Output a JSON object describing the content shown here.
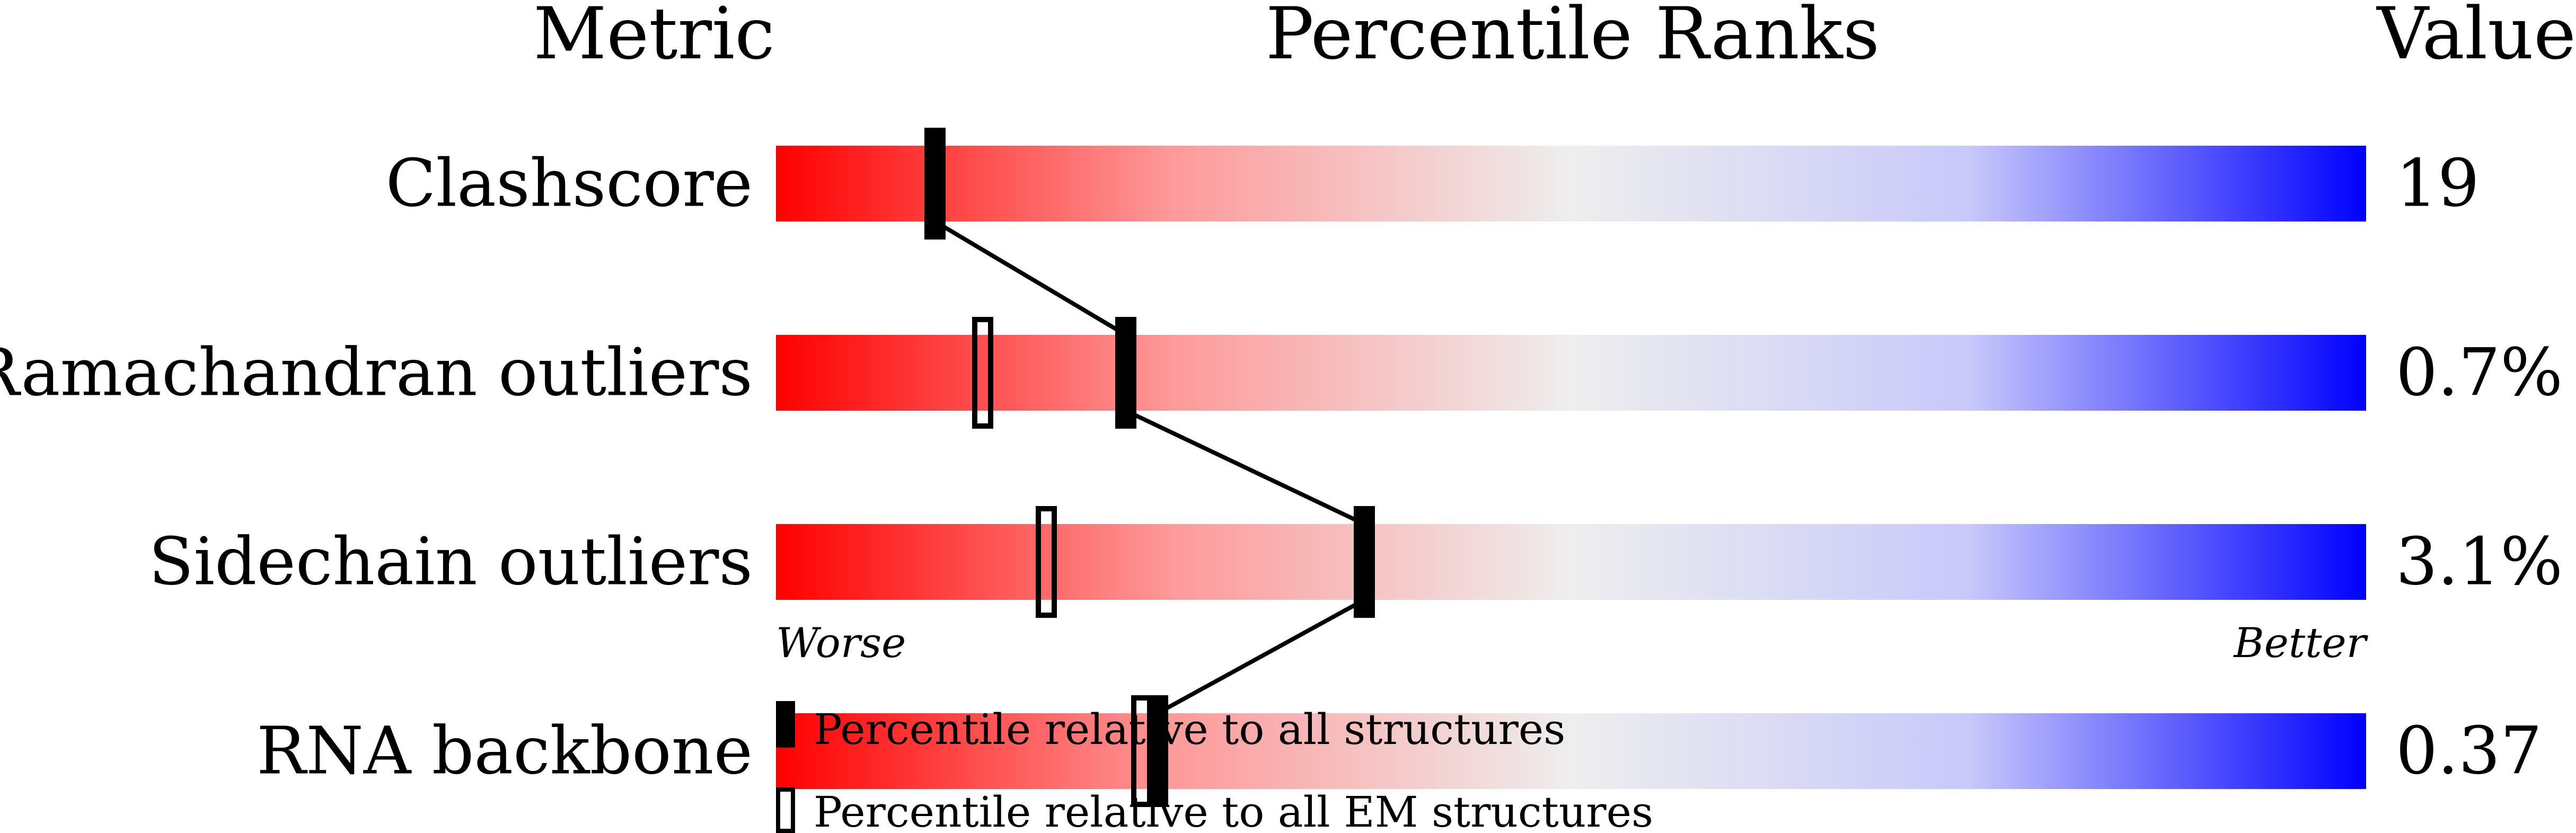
{
  "chart_data": {
    "type": "percentile-bar",
    "headers": {
      "metric": "Metric",
      "ranks": "Percentile Ranks",
      "value": "Value"
    },
    "xlim": [
      0,
      100
    ],
    "axis_labels": {
      "worse": "Worse",
      "better": "Better"
    },
    "gradient_colors": [
      "#ff0000",
      "#eeeeee",
      "#0000ff"
    ],
    "rows": [
      {
        "metric": "Clashscore",
        "value": "19",
        "percentile_all": 10,
        "percentile_em": null
      },
      {
        "metric": "Ramachandran outliers",
        "value": "0.7%",
        "percentile_all": 22,
        "percentile_em": 13
      },
      {
        "metric": "Sidechain outliers",
        "value": "3.1%",
        "percentile_all": 37,
        "percentile_em": 17
      },
      {
        "metric": "RNA backbone",
        "value": "0.37",
        "percentile_all": 24,
        "percentile_em": 23
      }
    ],
    "legend": [
      {
        "marker": "filled",
        "label": "Percentile relative to all structures"
      },
      {
        "marker": "open",
        "label": "Percentile relative to all EM structures"
      }
    ]
  }
}
